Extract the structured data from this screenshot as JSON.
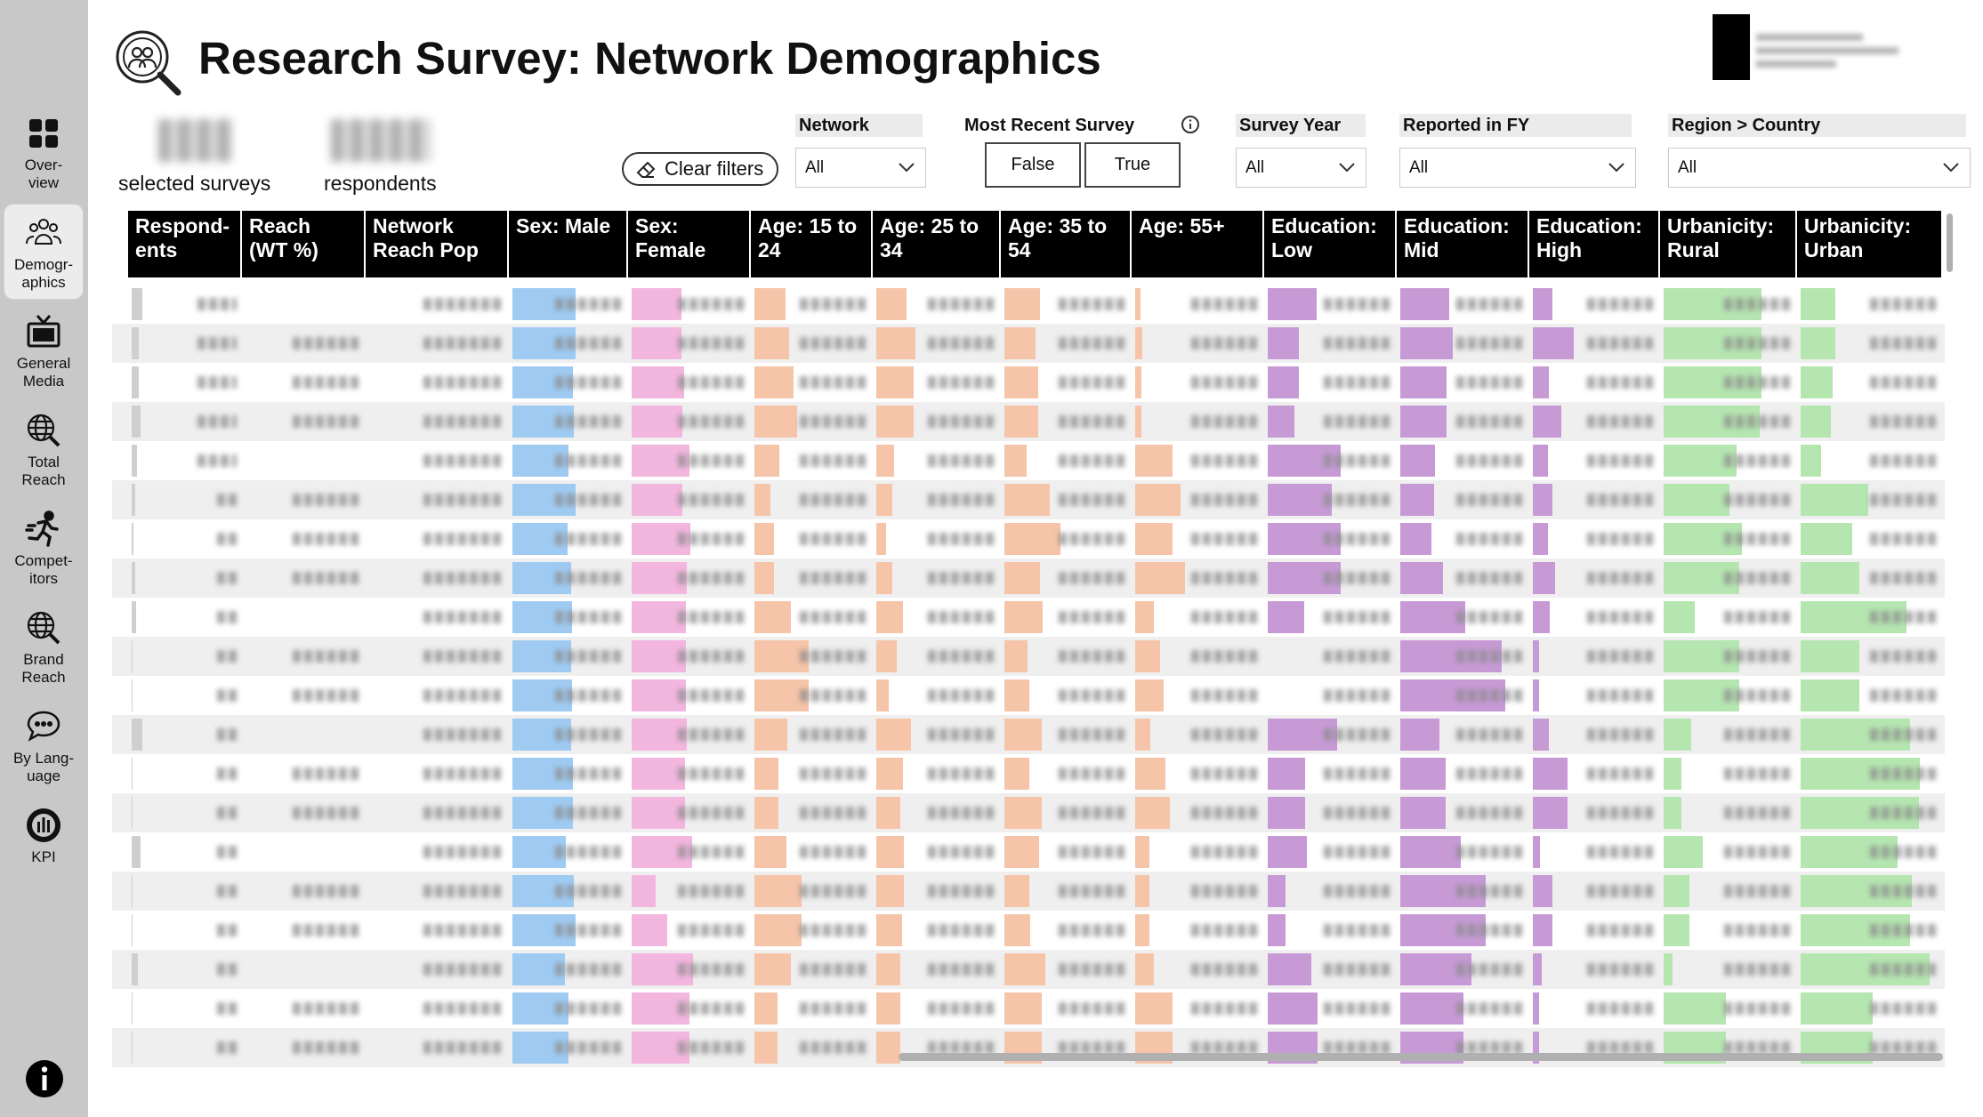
{
  "title": "Research Survey: Network Demographics",
  "sidebar": {
    "items": [
      {
        "label": "Over-\nview",
        "icon": "grid-icon"
      },
      {
        "label": "Demogr-\naphics",
        "icon": "people-icon"
      },
      {
        "label": "General\nMedia",
        "icon": "tv-icon"
      },
      {
        "label": "Total\nReach",
        "icon": "globe-search-icon"
      },
      {
        "label": "Compet-\nitors",
        "icon": "running-person-icon"
      },
      {
        "label": "Brand\nReach",
        "icon": "globe-search-icon"
      },
      {
        "label": "By Lang-\nuage",
        "icon": "chat-bubble-icon"
      },
      {
        "label": "KPI",
        "icon": "gauge-icon"
      }
    ]
  },
  "kpis": {
    "surveys_label": "selected surveys",
    "respondents_label": "respondents"
  },
  "clear_filters_label": "Clear filters",
  "filters": {
    "network": {
      "label": "Network",
      "value": "All"
    },
    "most_recent": {
      "label": "Most Recent Survey",
      "options": [
        "False",
        "True"
      ]
    },
    "survey_year": {
      "label": "Survey Year",
      "value": "All"
    },
    "reported_fy": {
      "label": "Reported in FY",
      "value": "All"
    },
    "region": {
      "label": "Region > Country",
      "value": "All"
    }
  },
  "table": {
    "columns": [
      "Respond-\nents",
      "Reach\n(WT %)",
      "Network\nReach Pop",
      "Sex: Male",
      "Sex:\nFemale",
      "Age: 15 to\n24",
      "Age: 25 to\n34",
      "Age: 35 to\n54",
      "Age: 55+",
      "Education:\nLow",
      "Education:\nMid",
      "Education:\nHigh",
      "Urbanicity:\nRural",
      "Urbanicity:\nUrban"
    ],
    "bar_colors": {
      "male": "#9fcbf3",
      "female": "#f3b6df",
      "age": "#f6c4a8",
      "education": "#c79ad6",
      "urbanicity": "#b5e6b0",
      "respondents": "#cfcfcf"
    },
    "rows": [
      {
        "resp": 0.1,
        "male": 0.56,
        "female": 0.43,
        "a1": 0.27,
        "a2": 0.25,
        "a3": 0.29,
        "a4": 0.04,
        "e1": 0.39,
        "e2": 0.39,
        "e3": 0.16,
        "u1": 0.75,
        "u2": 0.25
      },
      {
        "resp": 0.07,
        "male": 0.56,
        "female": 0.43,
        "a1": 0.3,
        "a2": 0.32,
        "a3": 0.25,
        "a4": 0.06,
        "e1": 0.25,
        "e2": 0.42,
        "e3": 0.33,
        "u1": 0.75,
        "u2": 0.25
      },
      {
        "resp": 0.07,
        "male": 0.54,
        "female": 0.45,
        "a1": 0.34,
        "a2": 0.31,
        "a3": 0.27,
        "a4": 0.05,
        "e1": 0.25,
        "e2": 0.37,
        "e3": 0.13,
        "u1": 0.75,
        "u2": 0.23
      },
      {
        "resp": 0.08,
        "male": 0.55,
        "female": 0.44,
        "a1": 0.37,
        "a2": 0.31,
        "a3": 0.27,
        "a4": 0.05,
        "e1": 0.21,
        "e2": 0.37,
        "e3": 0.23,
        "u1": 0.74,
        "u2": 0.22
      },
      {
        "resp": 0.05,
        "male": 0.5,
        "female": 0.5,
        "a1": 0.22,
        "a2": 0.15,
        "a3": 0.18,
        "a4": 0.3,
        "e1": 0.58,
        "e2": 0.28,
        "e3": 0.12,
        "u1": 0.56,
        "u2": 0.15
      },
      {
        "resp": 0.03,
        "male": 0.56,
        "female": 0.44,
        "a1": 0.14,
        "a2": 0.13,
        "a3": 0.37,
        "a4": 0.36,
        "e1": 0.51,
        "e2": 0.27,
        "e3": 0.16,
        "u1": 0.51,
        "u2": 0.49
      },
      {
        "resp": 0.02,
        "male": 0.49,
        "female": 0.51,
        "a1": 0.17,
        "a2": 0.08,
        "a3": 0.45,
        "a4": 0.3,
        "e1": 0.58,
        "e2": 0.25,
        "e3": 0.12,
        "u1": 0.6,
        "u2": 0.37
      },
      {
        "resp": 0.03,
        "male": 0.52,
        "female": 0.48,
        "a1": 0.17,
        "a2": 0.13,
        "a3": 0.29,
        "a4": 0.4,
        "e1": 0.58,
        "e2": 0.34,
        "e3": 0.18,
        "u1": 0.58,
        "u2": 0.42
      },
      {
        "resp": 0.04,
        "male": 0.53,
        "female": 0.47,
        "a1": 0.32,
        "a2": 0.22,
        "a3": 0.31,
        "a4": 0.15,
        "e1": 0.29,
        "e2": 0.52,
        "e3": 0.14,
        "u1": 0.24,
        "u2": 0.76
      },
      {
        "resp": 0.01,
        "male": 0.52,
        "female": 0.47,
        "a1": 0.47,
        "a2": 0.17,
        "a3": 0.19,
        "a4": 0.2,
        "e1": 0.0,
        "e2": 0.81,
        "e3": 0.05,
        "u1": 0.58,
        "u2": 0.42
      },
      {
        "resp": 0.01,
        "male": 0.53,
        "female": 0.47,
        "a1": 0.47,
        "a2": 0.1,
        "a3": 0.2,
        "a4": 0.23,
        "e1": 0.0,
        "e2": 0.84,
        "e3": 0.05,
        "u1": 0.58,
        "u2": 0.42
      },
      {
        "resp": 0.1,
        "male": 0.52,
        "female": 0.48,
        "a1": 0.29,
        "a2": 0.29,
        "a3": 0.3,
        "a4": 0.12,
        "e1": 0.55,
        "e2": 0.31,
        "e3": 0.13,
        "u1": 0.21,
        "u2": 0.79
      },
      {
        "resp": 0.01,
        "male": 0.54,
        "female": 0.46,
        "a1": 0.21,
        "a2": 0.22,
        "a3": 0.2,
        "a4": 0.24,
        "e1": 0.3,
        "e2": 0.36,
        "e3": 0.28,
        "u1": 0.14,
        "u2": 0.86
      },
      {
        "resp": 0.01,
        "male": 0.54,
        "female": 0.46,
        "a1": 0.21,
        "a2": 0.2,
        "a3": 0.3,
        "a4": 0.28,
        "e1": 0.3,
        "e2": 0.36,
        "e3": 0.28,
        "u1": 0.14,
        "u2": 0.85
      },
      {
        "resp": 0.08,
        "male": 0.48,
        "female": 0.52,
        "a1": 0.28,
        "a2": 0.23,
        "a3": 0.28,
        "a4": 0.11,
        "e1": 0.31,
        "e2": 0.48,
        "e3": 0.06,
        "u1": 0.3,
        "u2": 0.7
      },
      {
        "resp": 0.01,
        "male": 0.55,
        "female": 0.21,
        "a1": 0.41,
        "a2": 0.23,
        "a3": 0.2,
        "a4": 0.11,
        "e1": 0.14,
        "e2": 0.68,
        "e3": 0.16,
        "u1": 0.2,
        "u2": 0.8
      },
      {
        "resp": 0.01,
        "male": 0.56,
        "female": 0.31,
        "a1": 0.41,
        "a2": 0.21,
        "a3": 0.21,
        "a4": 0.11,
        "e1": 0.14,
        "e2": 0.68,
        "e3": 0.16,
        "u1": 0.2,
        "u2": 0.79
      },
      {
        "resp": 0.06,
        "male": 0.47,
        "female": 0.53,
        "a1": 0.32,
        "a2": 0.2,
        "a3": 0.33,
        "a4": 0.15,
        "e1": 0.35,
        "e2": 0.57,
        "e3": 0.07,
        "u1": 0.07,
        "u2": 0.93
      },
      {
        "resp": 0.01,
        "male": 0.5,
        "female": 0.5,
        "a1": 0.2,
        "a2": 0.2,
        "a3": 0.3,
        "a4": 0.3,
        "e1": 0.4,
        "e2": 0.5,
        "e3": 0.05,
        "u1": 0.48,
        "u2": 0.52
      },
      {
        "resp": 0.01,
        "male": 0.5,
        "female": 0.5,
        "a1": 0.2,
        "a2": 0.2,
        "a3": 0.3,
        "a4": 0.3,
        "e1": 0.4,
        "e2": 0.5,
        "e3": 0.05,
        "u1": 0.48,
        "u2": 0.52
      }
    ]
  }
}
